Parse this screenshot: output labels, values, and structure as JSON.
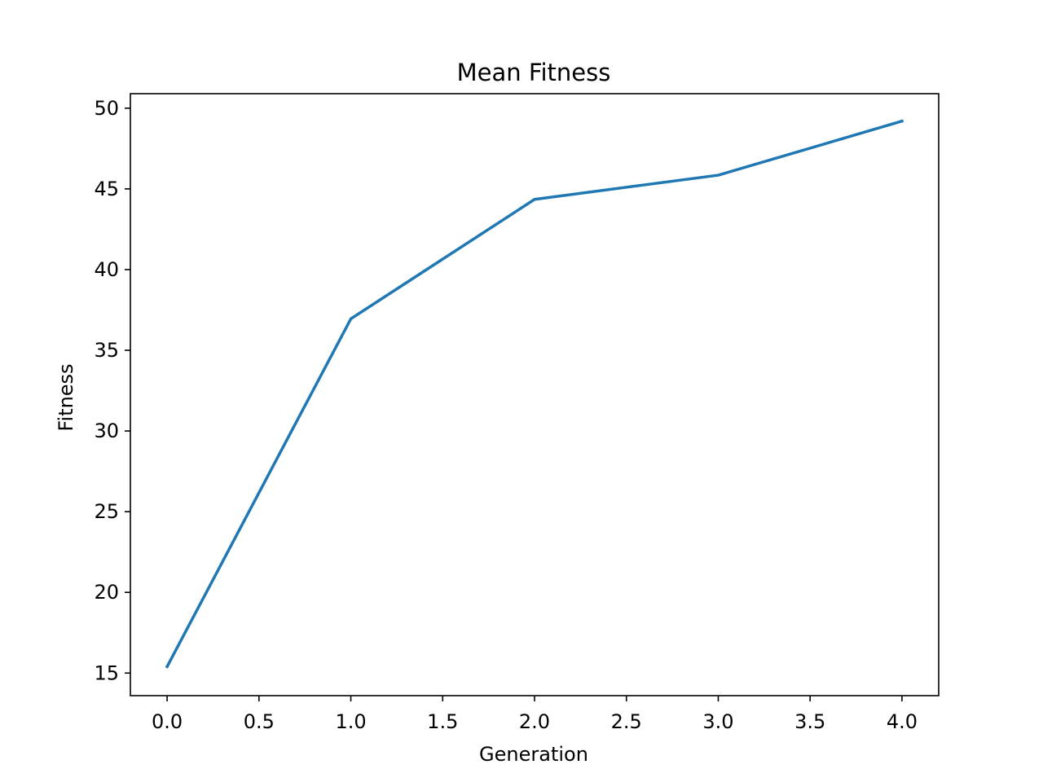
{
  "chart_data": {
    "type": "line",
    "title": "Mean Fitness",
    "xlabel": "Generation",
    "ylabel": "Fitness",
    "xlim": [
      -0.2,
      4.2
    ],
    "ylim": [
      13.6,
      50.9
    ],
    "x_ticks": [
      0.0,
      0.5,
      1.0,
      1.5,
      2.0,
      2.5,
      3.0,
      3.5,
      4.0
    ],
    "x_tick_labels": [
      "0.0",
      "0.5",
      "1.0",
      "1.5",
      "2.0",
      "2.5",
      "3.0",
      "3.5",
      "4.0"
    ],
    "y_ticks": [
      15,
      20,
      25,
      30,
      35,
      40,
      45,
      50
    ],
    "y_tick_labels": [
      "15",
      "20",
      "25",
      "30",
      "35",
      "40",
      "45",
      "50"
    ],
    "grid": false,
    "series": [
      {
        "name": "Mean Fitness",
        "color": "#1f77b4",
        "x": [
          0,
          1,
          2,
          3,
          4
        ],
        "y": [
          15.4,
          36.95,
          44.35,
          45.85,
          49.2
        ]
      }
    ]
  }
}
